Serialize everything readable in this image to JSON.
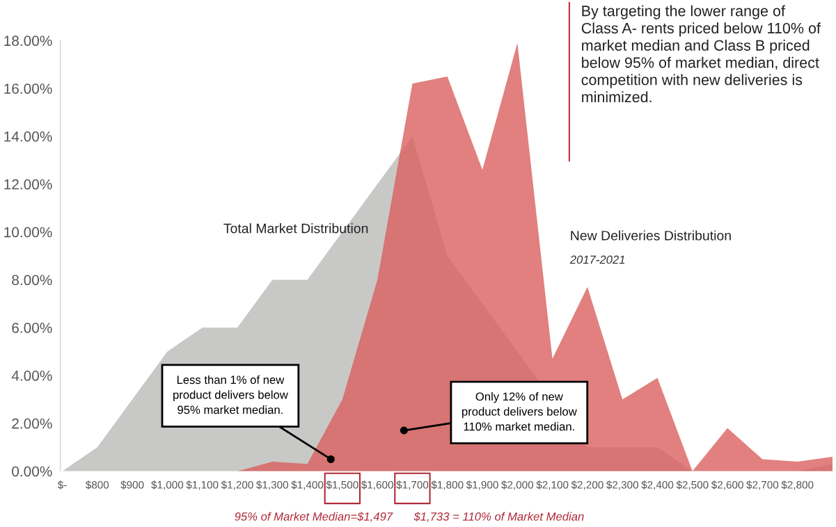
{
  "chart_data": {
    "type": "area",
    "categories": [
      "$-",
      "$800",
      "$900",
      "$1,000",
      "$1,100",
      "$1,200",
      "$1,300",
      "$1,400",
      "$1,500",
      "$1,600",
      "$1,700",
      "$1,800",
      "$1,900",
      "$2,000",
      "$2,100",
      "$2,200",
      "$2,300",
      "$2,400",
      "$2,500",
      "$2,600",
      "$2,700",
      "$2,800",
      null
    ],
    "series": [
      {
        "name": "Total Market Distribution",
        "color": "#c8c9c7",
        "values": [
          0,
          1,
          3,
          5,
          6,
          6,
          8,
          8,
          10,
          12,
          14,
          9,
          7,
          5,
          null,
          1,
          1,
          1,
          0,
          0,
          0,
          0,
          0.3
        ]
      },
      {
        "name": "New Deliveries Distribution",
        "color": "#d9605e",
        "values": [
          null,
          null,
          null,
          null,
          null,
          0,
          0.4,
          0.3,
          3,
          8,
          16.2,
          16.5,
          12.6,
          17.9,
          4.7,
          7.7,
          3,
          3.9,
          0,
          1.8,
          0.5,
          0.4,
          0.6
        ]
      }
    ],
    "ylim": [
      0,
      18
    ],
    "yticks": [
      {
        "value": 0,
        "label": "0.00%"
      },
      {
        "value": 2,
        "label": "2.00%"
      },
      {
        "value": 4,
        "label": "4.00%"
      },
      {
        "value": 6,
        "label": "6.00%"
      },
      {
        "value": 8,
        "label": "8.00%"
      },
      {
        "value": 10,
        "label": "10.00%"
      },
      {
        "value": 12,
        "label": "12.00%"
      },
      {
        "value": 14,
        "label": "14.00%"
      },
      {
        "value": 16,
        "label": "16.00%"
      },
      {
        "value": 18,
        "label": "18.00%"
      }
    ],
    "grid": false,
    "legend": false,
    "annotations": [
      "By targeting the lower range of\nClass A- rents priced below 110% of\nmarket median and Class B priced\nbelow 95% of market median, direct\ncompetition with new deliveries is\nminimized.",
      "2017-2021",
      "Less than 1% of new\nproduct delivers below\n95% market median.",
      "Only 12% of new\nproduct delivers below\n110% market median.",
      "95% of Market Median=$1,497",
      "$1,733 = 110% of Market Median"
    ]
  }
}
